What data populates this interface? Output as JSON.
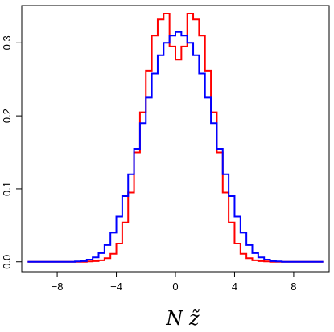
{
  "chart_data": {
    "type": "line",
    "style": "step-histogram",
    "title": "",
    "xlabel": "N z̃",
    "ylabel": "",
    "xlim": [
      -10.4,
      10.4
    ],
    "ylim": [
      -0.0135,
      0.351
    ],
    "x_ticks": [
      -8,
      -4,
      0,
      4,
      8
    ],
    "x_tick_labels": [
      "−8",
      "−4",
      "0",
      "4",
      "8"
    ],
    "y_ticks": [
      0.0,
      0.1,
      0.2,
      0.3
    ],
    "y_tick_labels": [
      "0.0",
      "0.1",
      "0.2",
      "0.3"
    ],
    "grid": false,
    "legend": "none",
    "bin_edges": [
      -10.0,
      -9.6,
      -9.2,
      -8.8,
      -8.4,
      -8.0,
      -7.6,
      -7.2,
      -6.8,
      -6.4,
      -6.0,
      -5.6,
      -5.2,
      -4.8,
      -4.4,
      -4.0,
      -3.6,
      -3.2,
      -2.8,
      -2.4,
      -2.0,
      -1.6,
      -1.2,
      -0.8,
      -0.4,
      0.0,
      0.4,
      0.8,
      1.2,
      1.6,
      2.0,
      2.4,
      2.8,
      3.2,
      3.6,
      4.0,
      4.4,
      4.8,
      5.2,
      5.6,
      6.0,
      6.4,
      6.8,
      7.2,
      7.6,
      8.0,
      8.4,
      8.8,
      9.2,
      9.6,
      10.0
    ],
    "series": [
      {
        "color": "#ff0000",
        "values": [
          0,
          0,
          0,
          0,
          0,
          0,
          0,
          0,
          0,
          0,
          0.0005,
          0.001,
          0.002,
          0.005,
          0.011,
          0.025,
          0.054,
          0.095,
          0.15,
          0.205,
          0.262,
          0.31,
          0.332,
          0.34,
          0.295,
          0.277,
          0.295,
          0.34,
          0.332,
          0.31,
          0.262,
          0.205,
          0.15,
          0.095,
          0.054,
          0.025,
          0.011,
          0.005,
          0.002,
          0.001,
          0.0005,
          0,
          0,
          0,
          0,
          0,
          0,
          0,
          0,
          0
        ]
      },
      {
        "color": "#0000ff",
        "values": [
          0,
          0,
          0,
          0,
          0,
          0,
          0,
          0,
          0.0005,
          0.001,
          0.003,
          0.006,
          0.012,
          0.023,
          0.04,
          0.062,
          0.09,
          0.12,
          0.155,
          0.19,
          0.225,
          0.258,
          0.283,
          0.3,
          0.31,
          0.315,
          0.31,
          0.3,
          0.283,
          0.258,
          0.225,
          0.19,
          0.155,
          0.12,
          0.09,
          0.062,
          0.04,
          0.023,
          0.012,
          0.006,
          0.003,
          0.001,
          0.0005,
          0,
          0,
          0,
          0,
          0,
          0,
          0
        ]
      }
    ]
  }
}
